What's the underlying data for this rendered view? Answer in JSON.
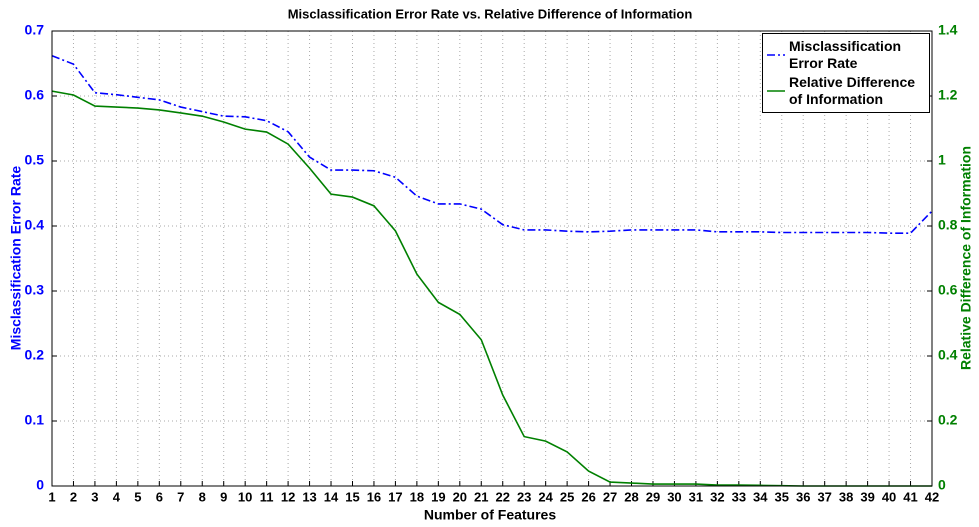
{
  "chart_data": {
    "type": "line",
    "title": "Misclassification Error Rate vs. Relative Difference of Information",
    "x_label": "Number of Features",
    "y_label": "Misclassification Error Rate",
    "y2_label": "Relative Difference of Information",
    "x": [
      1,
      2,
      3,
      4,
      5,
      6,
      7,
      8,
      9,
      10,
      11,
      12,
      13,
      14,
      15,
      16,
      17,
      18,
      19,
      20,
      21,
      22,
      23,
      24,
      25,
      26,
      27,
      28,
      29,
      30,
      31,
      32,
      33,
      34,
      35,
      36,
      37,
      38,
      39,
      40,
      41,
      42
    ],
    "xlim": [
      1,
      42
    ],
    "xticks": [
      1,
      2,
      3,
      4,
      5,
      6,
      7,
      8,
      9,
      10,
      11,
      12,
      13,
      14,
      15,
      16,
      17,
      18,
      19,
      20,
      21,
      22,
      23,
      24,
      25,
      26,
      27,
      28,
      29,
      30,
      31,
      32,
      33,
      34,
      35,
      36,
      37,
      38,
      39,
      40,
      41,
      42
    ],
    "ylim": [
      0,
      0.7
    ],
    "yticks": [
      0,
      0.1,
      0.2,
      0.3,
      0.4,
      0.5,
      0.6,
      0.7
    ],
    "y2lim": [
      0,
      1.4
    ],
    "y2ticks": [
      0,
      0.2,
      0.4,
      0.6,
      0.8,
      1,
      1.2,
      1.4
    ],
    "grid": true,
    "legend": "upper right",
    "series": [
      {
        "name": "Misclassification Error Rate",
        "color": "#0000ff",
        "dash": "dashdot",
        "values": [
          0.662,
          0.649,
          0.605,
          0.602,
          0.598,
          0.594,
          0.583,
          0.576,
          0.569,
          0.568,
          0.562,
          0.545,
          0.506,
          0.486,
          0.486,
          0.485,
          0.475,
          0.446,
          0.434,
          0.434,
          0.426,
          0.402,
          0.394,
          0.394,
          0.392,
          0.391,
          0.392,
          0.394,
          0.394,
          0.394,
          0.394,
          0.391,
          0.391,
          0.391,
          0.39,
          0.39,
          0.39,
          0.39,
          0.39,
          0.389,
          0.389,
          0.423
        ]
      },
      {
        "name": "Relative Difference of Information",
        "color": "#008000",
        "axis": "y2",
        "values": [
          1.215,
          1.203,
          1.169,
          1.166,
          1.163,
          1.157,
          1.148,
          1.138,
          1.12,
          1.098,
          1.089,
          1.052,
          0.978,
          0.898,
          0.889,
          0.862,
          0.785,
          0.652,
          0.565,
          0.528,
          0.45,
          0.28,
          0.152,
          0.138,
          0.105,
          0.046,
          0.012,
          0.009,
          0.006,
          0.006,
          0.006,
          0.003,
          0.003,
          0.002,
          0.001,
          0,
          0,
          0,
          0,
          0,
          0,
          0
        ]
      }
    ]
  }
}
